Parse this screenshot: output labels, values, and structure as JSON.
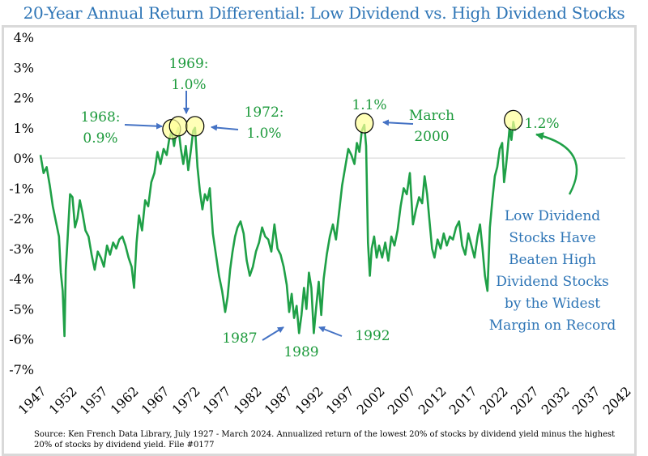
{
  "title": "20-Year Annual Return Differential: Low Dividend vs. High Dividend Stocks",
  "source": "Source: Ken French Data Library, July 1927 - March 2024. Annualized return of the lowest 20% of stocks by dividend yield minus the highest 20% of stocks by dividend yield. File #0177",
  "colors": {
    "line": "#1fa047",
    "marker_fill": "#ffff99",
    "arrow": "#4472c4",
    "title": "#2e75b6",
    "annotation_green": "#1d9a3c",
    "annotation_blue": "#2e75b6"
  },
  "chart_data": {
    "type": "line",
    "title": "20-Year Annual Return Differential: Low Dividend vs. High Dividend Stocks",
    "xlabel": "",
    "ylabel": "",
    "xlim": [
      1947,
      2042
    ],
    "ylim": [
      -7,
      4
    ],
    "y_unit": "%",
    "grid": false,
    "zero_line": true,
    "x_ticks": [
      "1947",
      "1952",
      "1957",
      "1962",
      "1967",
      "1972",
      "1977",
      "1982",
      "1987",
      "1992",
      "1997",
      "2002",
      "2007",
      "2012",
      "2017",
      "2022",
      "2027",
      "2032",
      "2037",
      "2042"
    ],
    "y_ticks": [
      "4%",
      "3%",
      "2%",
      "1%",
      "0%",
      "-1%",
      "-2%",
      "-3%",
      "-4%",
      "-5%",
      "-6%",
      "-7%"
    ],
    "series": [
      {
        "points": [
          [
            1947.0,
            0.1
          ],
          [
            1947.5,
            -0.5
          ],
          [
            1948.0,
            -0.3
          ],
          [
            1948.5,
            -0.9
          ],
          [
            1949.0,
            -1.6
          ],
          [
            1949.5,
            -2.1
          ],
          [
            1950.0,
            -2.6
          ],
          [
            1950.3,
            -3.8
          ],
          [
            1950.6,
            -4.4
          ],
          [
            1950.9,
            -5.9
          ],
          [
            1951.1,
            -3.7
          ],
          [
            1951.4,
            -2.7
          ],
          [
            1951.8,
            -1.2
          ],
          [
            1952.2,
            -1.3
          ],
          [
            1952.6,
            -2.3
          ],
          [
            1953.0,
            -2.0
          ],
          [
            1953.4,
            -1.4
          ],
          [
            1953.8,
            -1.8
          ],
          [
            1954.3,
            -2.4
          ],
          [
            1954.8,
            -2.6
          ],
          [
            1955.3,
            -3.2
          ],
          [
            1955.8,
            -3.7
          ],
          [
            1956.3,
            -3.1
          ],
          [
            1956.8,
            -3.3
          ],
          [
            1957.3,
            -3.6
          ],
          [
            1957.8,
            -2.9
          ],
          [
            1958.3,
            -3.2
          ],
          [
            1958.8,
            -2.8
          ],
          [
            1959.3,
            -3.0
          ],
          [
            1959.8,
            -2.7
          ],
          [
            1960.3,
            -2.6
          ],
          [
            1960.8,
            -2.9
          ],
          [
            1961.3,
            -3.3
          ],
          [
            1961.8,
            -3.6
          ],
          [
            1962.2,
            -4.3
          ],
          [
            1962.6,
            -2.8
          ],
          [
            1963.0,
            -1.9
          ],
          [
            1963.5,
            -2.4
          ],
          [
            1964.0,
            -1.4
          ],
          [
            1964.5,
            -1.6
          ],
          [
            1965.0,
            -0.8
          ],
          [
            1965.5,
            -0.5
          ],
          [
            1966.0,
            0.2
          ],
          [
            1966.5,
            -0.2
          ],
          [
            1967.0,
            0.3
          ],
          [
            1967.5,
            0.1
          ],
          [
            1967.9,
            0.6
          ],
          [
            1968.3,
            0.9
          ],
          [
            1968.7,
            0.4
          ],
          [
            1969.0,
            0.8
          ],
          [
            1969.4,
            1.0
          ],
          [
            1969.8,
            0.3
          ],
          [
            1970.2,
            -0.2
          ],
          [
            1970.6,
            0.4
          ],
          [
            1971.0,
            -0.4
          ],
          [
            1971.4,
            0.2
          ],
          [
            1971.8,
            0.9
          ],
          [
            1972.1,
            1.0
          ],
          [
            1972.5,
            -0.3
          ],
          [
            1972.9,
            -1.1
          ],
          [
            1973.3,
            -1.7
          ],
          [
            1973.7,
            -1.2
          ],
          [
            1974.1,
            -1.4
          ],
          [
            1974.5,
            -1.0
          ],
          [
            1975.0,
            -2.5
          ],
          [
            1975.5,
            -3.2
          ],
          [
            1976.0,
            -3.9
          ],
          [
            1976.5,
            -4.4
          ],
          [
            1977.0,
            -5.1
          ],
          [
            1977.4,
            -4.6
          ],
          [
            1977.8,
            -3.7
          ],
          [
            1978.2,
            -3.1
          ],
          [
            1978.6,
            -2.6
          ],
          [
            1979.0,
            -2.3
          ],
          [
            1979.5,
            -2.1
          ],
          [
            1980.0,
            -2.5
          ],
          [
            1980.5,
            -3.4
          ],
          [
            1981.0,
            -3.9
          ],
          [
            1981.5,
            -3.6
          ],
          [
            1982.0,
            -3.1
          ],
          [
            1982.5,
            -2.8
          ],
          [
            1983.0,
            -2.3
          ],
          [
            1983.5,
            -2.6
          ],
          [
            1984.0,
            -2.7
          ],
          [
            1984.5,
            -3.1
          ],
          [
            1985.0,
            -2.2
          ],
          [
            1985.5,
            -3.0
          ],
          [
            1986.0,
            -3.2
          ],
          [
            1986.5,
            -3.6
          ],
          [
            1987.0,
            -4.2
          ],
          [
            1987.4,
            -5.1
          ],
          [
            1987.8,
            -4.5
          ],
          [
            1988.2,
            -5.3
          ],
          [
            1988.6,
            -4.9
          ],
          [
            1989.0,
            -5.8
          ],
          [
            1989.4,
            -5.2
          ],
          [
            1989.8,
            -4.3
          ],
          [
            1990.2,
            -5.0
          ],
          [
            1990.6,
            -3.8
          ],
          [
            1991.0,
            -4.3
          ],
          [
            1991.4,
            -5.8
          ],
          [
            1991.8,
            -4.9
          ],
          [
            1992.2,
            -4.1
          ],
          [
            1992.6,
            -5.2
          ],
          [
            1993.0,
            -4.0
          ],
          [
            1993.5,
            -3.2
          ],
          [
            1994.0,
            -2.6
          ],
          [
            1994.5,
            -2.2
          ],
          [
            1995.0,
            -2.7
          ],
          [
            1995.5,
            -1.8
          ],
          [
            1996.0,
            -0.9
          ],
          [
            1996.5,
            -0.3
          ],
          [
            1997.0,
            0.3
          ],
          [
            1997.5,
            0.1
          ],
          [
            1998.0,
            -0.2
          ],
          [
            1998.4,
            0.5
          ],
          [
            1998.8,
            0.2
          ],
          [
            1999.2,
            0.9
          ],
          [
            1999.6,
            1.1
          ],
          [
            1999.9,
            0.4
          ],
          [
            2000.2,
            -2.8
          ],
          [
            2000.5,
            -3.9
          ],
          [
            2000.8,
            -3.0
          ],
          [
            2001.2,
            -2.6
          ],
          [
            2001.6,
            -3.3
          ],
          [
            2002.0,
            -2.9
          ],
          [
            2002.5,
            -3.3
          ],
          [
            2003.0,
            -2.8
          ],
          [
            2003.5,
            -3.4
          ],
          [
            2004.0,
            -2.6
          ],
          [
            2004.5,
            -2.9
          ],
          [
            2005.0,
            -2.4
          ],
          [
            2005.5,
            -1.6
          ],
          [
            2006.0,
            -1.0
          ],
          [
            2006.5,
            -1.2
          ],
          [
            2007.0,
            -0.5
          ],
          [
            2007.5,
            -2.2
          ],
          [
            2008.0,
            -1.7
          ],
          [
            2008.5,
            -1.3
          ],
          [
            2009.0,
            -1.5
          ],
          [
            2009.4,
            -0.6
          ],
          [
            2009.8,
            -1.2
          ],
          [
            2010.2,
            -2.1
          ],
          [
            2010.6,
            -3.0
          ],
          [
            2011.0,
            -3.3
          ],
          [
            2011.5,
            -2.7
          ],
          [
            2012.0,
            -3.0
          ],
          [
            2012.5,
            -2.5
          ],
          [
            2013.0,
            -2.9
          ],
          [
            2013.5,
            -2.6
          ],
          [
            2014.0,
            -2.7
          ],
          [
            2014.5,
            -2.3
          ],
          [
            2015.0,
            -2.1
          ],
          [
            2015.5,
            -2.9
          ],
          [
            2016.0,
            -3.2
          ],
          [
            2016.5,
            -2.5
          ],
          [
            2017.0,
            -2.9
          ],
          [
            2017.5,
            -3.3
          ],
          [
            2018.0,
            -2.6
          ],
          [
            2018.4,
            -2.2
          ],
          [
            2018.8,
            -3.0
          ],
          [
            2019.2,
            -3.9
          ],
          [
            2019.6,
            -4.4
          ],
          [
            2020.0,
            -2.3
          ],
          [
            2020.4,
            -1.4
          ],
          [
            2020.8,
            -0.6
          ],
          [
            2021.2,
            -0.3
          ],
          [
            2021.6,
            0.3
          ],
          [
            2022.0,
            0.5
          ],
          [
            2022.3,
            -0.8
          ],
          [
            2022.6,
            -0.3
          ],
          [
            2022.9,
            0.3
          ],
          [
            2023.2,
            1.0
          ],
          [
            2023.5,
            0.6
          ],
          [
            2023.8,
            1.2
          ],
          [
            2024.1,
            0.9
          ]
        ]
      }
    ],
    "highlights": [
      {
        "x": 1968.3,
        "y": 0.9
      },
      {
        "x": 1969.4,
        "y": 1.0
      },
      {
        "x": 1972.1,
        "y": 1.0
      },
      {
        "x": 1999.6,
        "y": 1.1
      },
      {
        "x": 2023.8,
        "y": 1.2
      }
    ],
    "annotations": [
      {
        "id": "a1968",
        "lines": [
          "1968:",
          "0.9%"
        ],
        "color": "green"
      },
      {
        "id": "a1969",
        "lines": [
          "1969:",
          "1.0%"
        ],
        "color": "green"
      },
      {
        "id": "a1972",
        "lines": [
          "1972:",
          "1.0%"
        ],
        "color": "green"
      },
      {
        "id": "a2000pct",
        "lines": [
          "1.1%"
        ],
        "color": "green"
      },
      {
        "id": "a2000",
        "lines": [
          "March",
          "2000"
        ],
        "color": "green"
      },
      {
        "id": "a2024",
        "lines": [
          "1.2%"
        ],
        "color": "green"
      },
      {
        "id": "a1987",
        "lines": [
          "1987"
        ],
        "color": "green"
      },
      {
        "id": "a1989",
        "lines": [
          "1989"
        ],
        "color": "green"
      },
      {
        "id": "a1992",
        "lines": [
          "1992"
        ],
        "color": "green"
      },
      {
        "id": "note",
        "lines": [
          "Low Dividend",
          "Stocks Have",
          "Beaten High",
          "Dividend Stocks",
          "by the Widest",
          "Margin on Record"
        ],
        "color": "blue"
      }
    ]
  }
}
